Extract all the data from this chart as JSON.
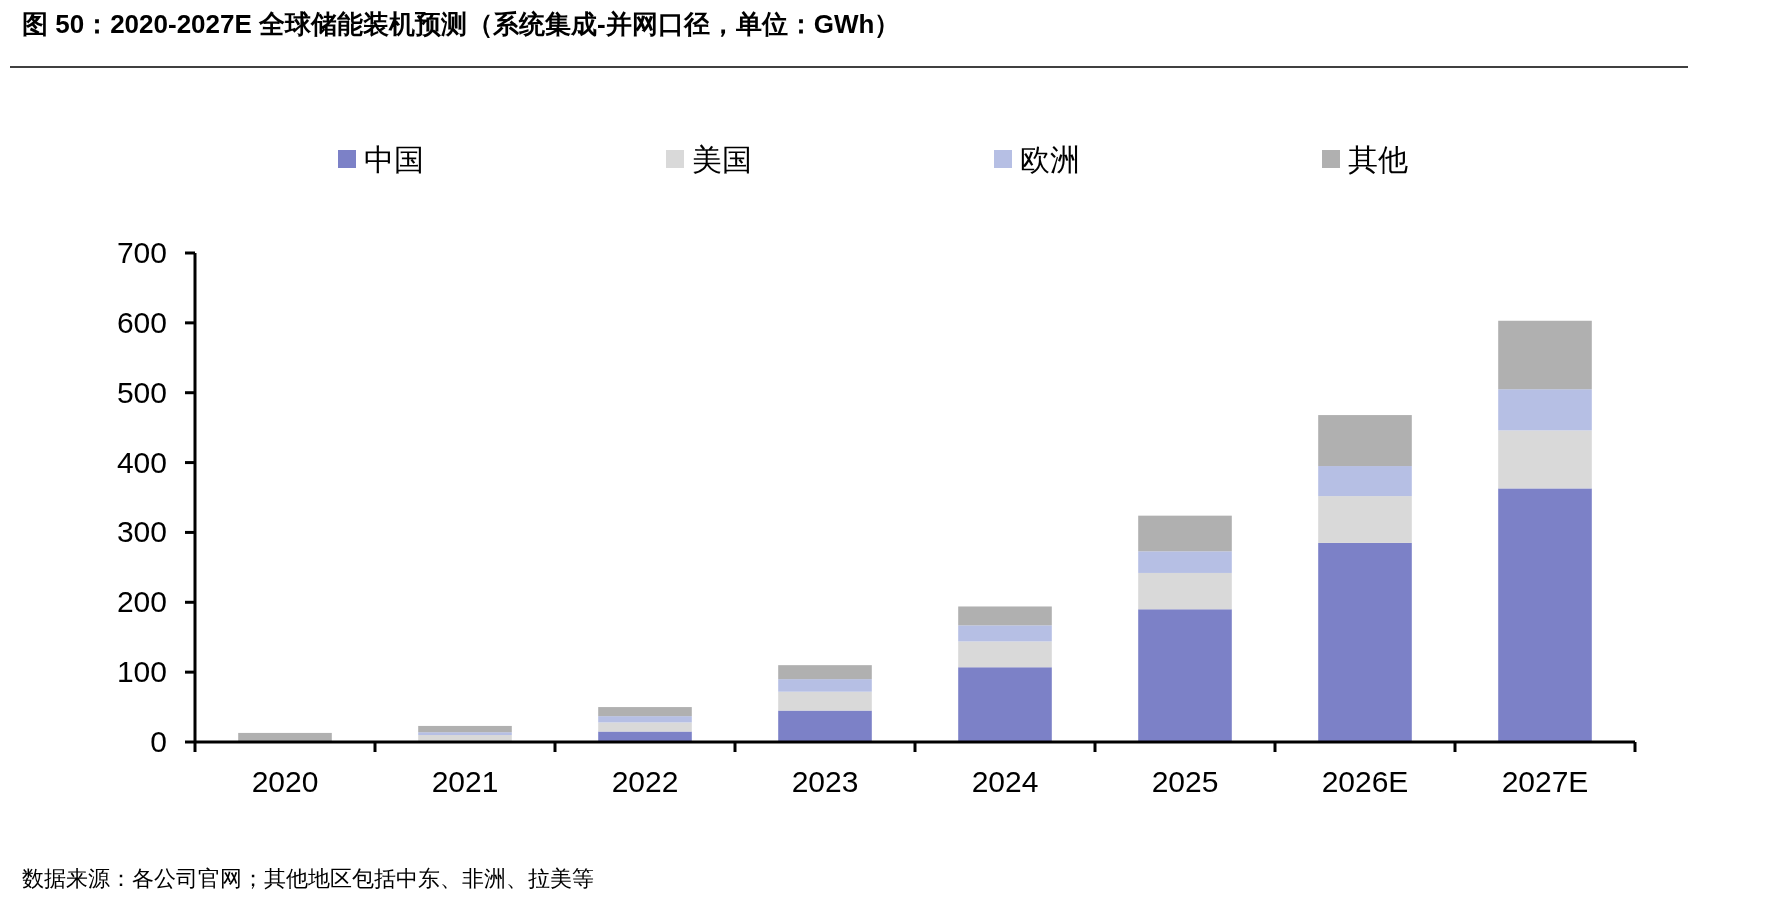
{
  "chart_data": {
    "type": "bar",
    "title": "图 50：2020-2027E 全球储能装机预测（系统集成-并网口径，单位：GWh）",
    "categories": [
      "2020",
      "2021",
      "2022",
      "2023",
      "2024",
      "2025",
      "2026E",
      "2027E"
    ],
    "stacked": true,
    "ylim": [
      0,
      700
    ],
    "yticks": [
      0,
      100,
      200,
      300,
      400,
      500,
      600,
      700
    ],
    "grid": false,
    "legend": "top",
    "series": [
      {
        "name": "中国",
        "color": "#7c81c7",
        "values": [
          null,
          null,
          15,
          45,
          107,
          190,
          285,
          363
        ]
      },
      {
        "name": "美国",
        "color": "#d9d9d9",
        "values": [
          null,
          10,
          13,
          27,
          37,
          52,
          67,
          83
        ]
      },
      {
        "name": "欧洲",
        "color": "#b6bfe4",
        "values": [
          null,
          4,
          9,
          18,
          23,
          31,
          43,
          59
        ]
      },
      {
        "name": "其他",
        "color": "#b0b0b0",
        "values": [
          13,
          9,
          13,
          20,
          27,
          51,
          73,
          98
        ]
      }
    ],
    "annotations": [
      "数据来源：各公司官网；其他地区包括中东、非洲、拉美等"
    ]
  }
}
